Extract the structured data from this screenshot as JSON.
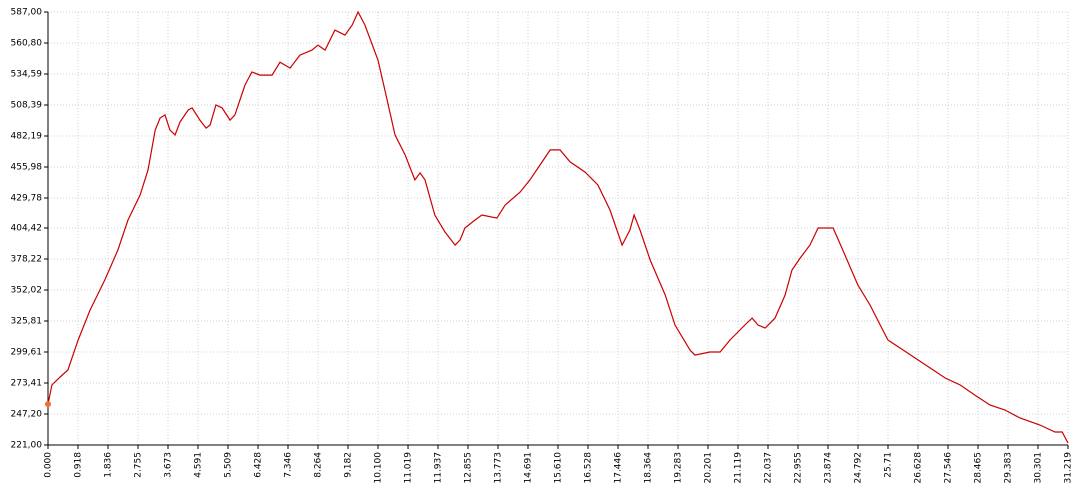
{
  "chart_data": {
    "type": "line",
    "x": [
      0,
      0.12,
      0.37,
      0.61,
      0.92,
      1.29,
      1.74,
      2.14,
      2.45,
      2.82,
      3.06,
      3.28,
      3.43,
      3.58,
      3.73,
      3.89,
      4.04,
      4.29,
      4.41,
      4.65,
      4.84,
      4.96,
      5.14,
      5.33,
      5.57,
      5.72,
      6.03,
      6.24,
      6.49,
      6.86,
      7.1,
      7.41,
      7.71,
      8.08,
      8.26,
      8.48,
      8.78,
      9.09,
      9.31,
      9.49,
      9.7,
      10.1,
      10.31,
      10.62,
      10.93,
      11.23,
      11.39,
      11.54,
      11.84,
      12.15,
      12.46,
      12.61,
      12.76,
      13.07,
      13.28,
      13.74,
      13.99,
      14.45,
      14.75,
      15.06,
      15.37,
      15.67,
      15.98,
      16.44,
      16.83,
      17.2,
      17.57,
      17.81,
      17.94,
      18.12,
      18.43,
      18.89,
      19.19,
      19.65,
      19.8,
      20.26,
      20.57,
      20.87,
      21.33,
      21.55,
      21.73,
      21.95,
      22.25,
      22.56,
      22.77,
      23.02,
      23.32,
      23.57,
      23.78,
      24.03,
      24.3,
      24.79,
      25.16,
      25.47,
      25.71,
      26.08,
      26.54,
      27.0,
      27.46,
      27.92,
      28.37,
      28.83,
      29.29,
      29.75,
      30.36,
      30.82,
      31.04,
      31.219
    ],
    "series": [
      {
        "color": "#cc0000",
        "values": [
          255.6,
          271.7,
          278.5,
          284.4,
          309.7,
          335.1,
          360.5,
          385.8,
          411.2,
          432.3,
          453.4,
          487.3,
          497.4,
          500,
          487.3,
          483.1,
          494,
          504.2,
          505.9,
          495.6,
          488.9,
          491.5,
          508.4,
          505.9,
          495.6,
          500,
          525.3,
          536.3,
          533.7,
          533.7,
          544.6,
          539.6,
          550.6,
          554.8,
          559,
          554.8,
          571.7,
          567.5,
          576,
          587,
          576,
          546.3,
          521,
          483.1,
          466.2,
          445.1,
          451,
          445.1,
          415.4,
          401,
          390,
          394.2,
          404.4,
          411.2,
          415.4,
          412.8,
          423.8,
          434.8,
          445.1,
          457.7,
          470.4,
          470.4,
          460.3,
          451.7,
          440.8,
          419.6,
          390,
          402.7,
          415.4,
          402.7,
          377.3,
          347.8,
          322.4,
          301.3,
          297,
          299.6,
          299.6,
          309.7,
          322.4,
          328.3,
          322.4,
          319.9,
          328.3,
          347.8,
          368.9,
          379,
          390,
          404.4,
          404.4,
          404.4,
          387.5,
          356.2,
          339.3,
          322.4,
          309.7,
          303,
          294.5,
          286.1,
          277.6,
          271.7,
          263.2,
          254.8,
          250.6,
          243.8,
          237.9,
          232,
          232,
          222.7
        ]
      }
    ],
    "xlim": [
      0,
      31.219
    ],
    "xticks": [
      {
        "value": 0,
        "label": "0.000"
      },
      0.918,
      1.836,
      2.755,
      3.673,
      4.591,
      5.509,
      6.428,
      7.346,
      8.264,
      9.182,
      {
        "value": 10.1,
        "label": "10.100"
      },
      11.019,
      11.937,
      12.855,
      13.773,
      14.691,
      {
        "value": 15.61,
        "label": "15.610"
      },
      16.528,
      17.446,
      18.364,
      19.283,
      20.201,
      21.119,
      22.037,
      22.955,
      23.874,
      24.792,
      25.71,
      26.628,
      27.546,
      28.465,
      29.383,
      30.301,
      31.219
    ],
    "ylim": [
      221,
      587
    ],
    "yticks": [
      {
        "value": 221,
        "label": "221,00"
      },
      {
        "value": 247.2,
        "label": "247,20"
      },
      {
        "value": 273.41,
        "label": "273,41"
      },
      {
        "value": 299.61,
        "label": "299,61"
      },
      {
        "value": 325.81,
        "label": "325,81"
      },
      {
        "value": 352.02,
        "label": "352,02"
      },
      {
        "value": 378.22,
        "label": "378,22"
      },
      {
        "value": 404.42,
        "label": "404,42"
      },
      {
        "value": 429.78,
        "label": "429,78"
      },
      {
        "value": 455.98,
        "label": "455,98"
      },
      {
        "value": 482.19,
        "label": "482,19"
      },
      {
        "value": 508.39,
        "label": "508,39"
      },
      {
        "value": 534.59,
        "label": "534,59"
      },
      {
        "value": 560.8,
        "label": "560,80"
      },
      {
        "value": 587,
        "label": "587,00"
      }
    ],
    "grid": true
  }
}
